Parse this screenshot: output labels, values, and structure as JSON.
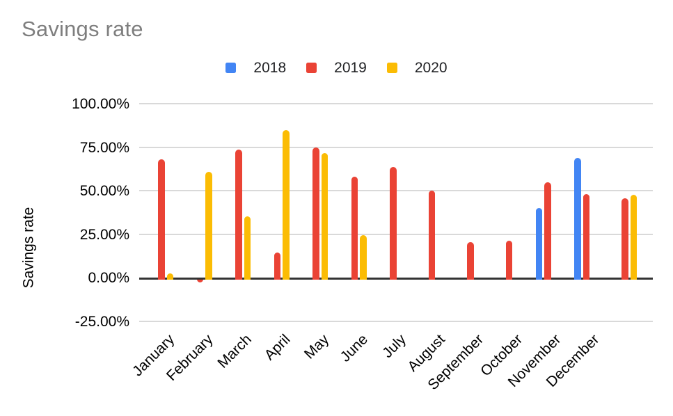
{
  "chart_data": {
    "type": "bar",
    "title": "Savings rate",
    "ylabel": "Savings rate",
    "xlabel": "",
    "categories": [
      "January",
      "February",
      "March",
      "April",
      "May",
      "June",
      "July",
      "August",
      "September",
      "October",
      "November",
      "December",
      ""
    ],
    "series": [
      {
        "name": "2018",
        "color": "#4285F4",
        "values": [
          null,
          null,
          null,
          null,
          null,
          null,
          null,
          null,
          null,
          null,
          40,
          69,
          null
        ]
      },
      {
        "name": "2019",
        "color": "#EA4335",
        "values": [
          68,
          -1.5,
          73.5,
          14.5,
          75,
          58,
          63.5,
          50,
          20.5,
          21.5,
          55,
          48,
          45.5
        ]
      },
      {
        "name": "2020",
        "color": "#FBBC04",
        "values": [
          2.5,
          61,
          35.5,
          85,
          71.5,
          24.5,
          null,
          null,
          null,
          null,
          null,
          null,
          47.5
        ]
      }
    ],
    "y_ticks": [
      {
        "value": 100,
        "label": "100.00%"
      },
      {
        "value": 75,
        "label": "75.00%"
      },
      {
        "value": 50,
        "label": "50.00%"
      },
      {
        "value": 25,
        "label": "25.00%"
      },
      {
        "value": 0,
        "label": "0.00%"
      },
      {
        "value": -25,
        "label": "-25.00%"
      }
    ],
    "ylim": [
      -25,
      100
    ],
    "grid": true,
    "legend_position": "top",
    "colors": {
      "title_text": "#7e7e7e",
      "axis_text": "#000000",
      "zero_axis_line": "#333333",
      "gridline": "#d9d9d9",
      "background": "#ffffff"
    }
  }
}
